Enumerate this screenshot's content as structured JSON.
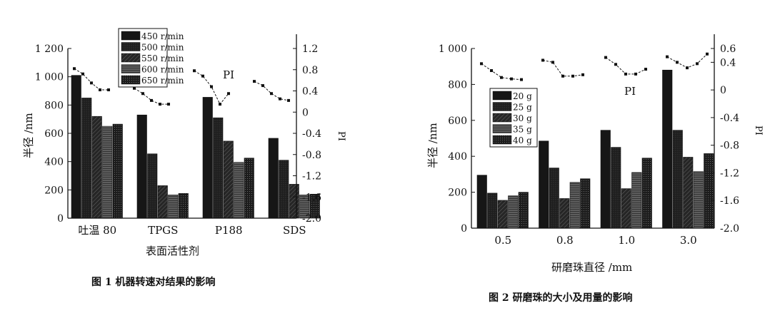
{
  "chart_data": [
    {
      "type": "bar",
      "categories": [
        "吐温 80",
        "TPGS",
        "P188",
        "SDS"
      ],
      "series": [
        {
          "name": "450 r/min",
          "values": [
            1010,
            730,
            855,
            565
          ]
        },
        {
          "name": "500 r/min",
          "values": [
            850,
            455,
            710,
            410
          ]
        },
        {
          "name": "550 r/min",
          "values": [
            720,
            230,
            545,
            240
          ]
        },
        {
          "name": "600 r/min",
          "values": [
            650,
            165,
            395,
            165
          ]
        },
        {
          "name": "650 r/min",
          "values": [
            665,
            175,
            425,
            170
          ]
        }
      ],
      "pi_series": {
        "label": "PI",
        "values": [
          [
            0.82,
            0.72,
            0.55,
            0.42,
            0.42
          ],
          [
            0.45,
            0.35,
            0.22,
            0.15,
            0.15
          ],
          [
            0.78,
            0.68,
            0.48,
            0.15,
            0.35
          ],
          [
            0.58,
            0.5,
            0.35,
            0.25,
            0.22
          ]
        ]
      },
      "xlabel": "表面活性剂",
      "ylabel": "半径 /nm",
      "y2label": "PI",
      "ylim": [
        0,
        1200
      ],
      "yticks": [
        "0",
        "200",
        "400",
        "600",
        "800",
        "1 000",
        "1 200"
      ],
      "y2lim": [
        -2.0,
        1.2
      ],
      "y2ticks": [
        "-2.0",
        "-1.6",
        "-1.2",
        "-0.8",
        "-0.4",
        "0",
        "0.4",
        "0.8",
        "1.2"
      ],
      "legend_position": "top",
      "caption": "图 1   机器转速对结果的影响"
    },
    {
      "type": "bar",
      "categories": [
        "0.5",
        "0.8",
        "1.0",
        "3.0"
      ],
      "series": [
        {
          "name": "20 g",
          "values": [
            295,
            485,
            545,
            880
          ]
        },
        {
          "name": "25 g",
          "values": [
            195,
            335,
            450,
            545
          ]
        },
        {
          "name": "30 g",
          "values": [
            155,
            165,
            220,
            395
          ]
        },
        {
          "name": "35 g",
          "values": [
            180,
            255,
            310,
            315
          ]
        },
        {
          "name": "40 g",
          "values": [
            200,
            275,
            390,
            415
          ]
        }
      ],
      "pi_series": {
        "label": "PI",
        "values": [
          [
            0.38,
            0.28,
            0.18,
            0.16,
            0.15
          ],
          [
            0.43,
            0.4,
            0.2,
            0.2,
            0.22
          ],
          [
            0.47,
            0.37,
            0.23,
            0.23,
            0.3
          ],
          [
            0.48,
            0.4,
            0.32,
            0.38,
            0.52
          ]
        ]
      },
      "xlabel": "研磨珠直径 /mm",
      "ylabel": "半径 /nm",
      "y2label": "PI",
      "ylim": [
        0,
        1000
      ],
      "yticks": [
        "0",
        "200",
        "400",
        "600",
        "800",
        "1 000"
      ],
      "y2lim": [
        -2.0,
        0.6
      ],
      "y2ticks": [
        "-2.0",
        "-1.6",
        "-1.2",
        "-0.8",
        "-0.4",
        "0",
        "0.4",
        "0.6"
      ],
      "legend_position": "left",
      "caption": "图 2   研磨珠的大小及用量的影响"
    }
  ],
  "colors": {
    "series": [
      "#161616",
      "#222222",
      "#2e2e2e",
      "#3a3a3a",
      "#262626"
    ],
    "axis": "#111111"
  }
}
